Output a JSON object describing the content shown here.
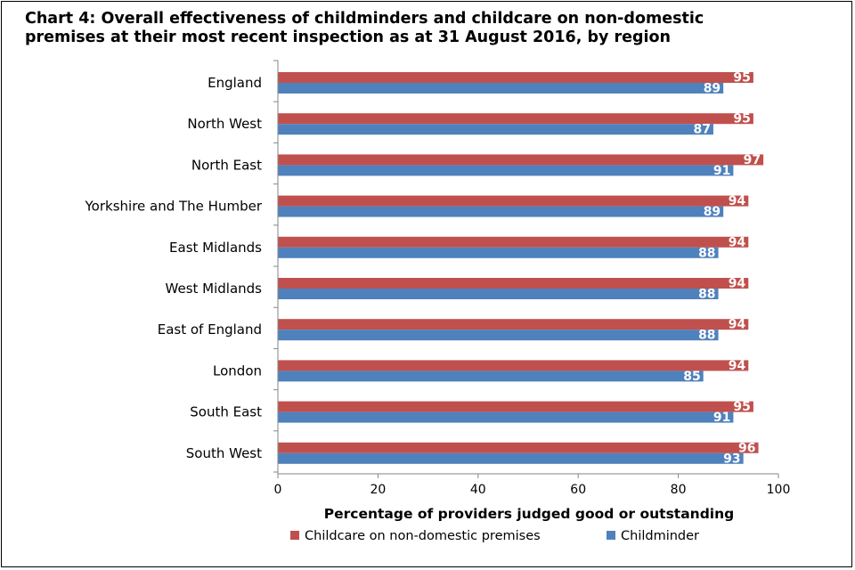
{
  "chart_data": {
    "type": "bar",
    "orientation": "horizontal",
    "title": "Chart 4: Overall effectiveness of childminders and childcare on non-domestic\npremises at their most recent inspection as at 31 August 2016, by region",
    "xlabel": "Percentage of providers judged good or outstanding",
    "ylabel": "",
    "xlim": [
      0,
      100
    ],
    "xticks": [
      0,
      20,
      40,
      60,
      80,
      100
    ],
    "grid": false,
    "legend_position": "bottom",
    "categories": [
      "England",
      "North West",
      "North East",
      "Yorkshire and The Humber",
      "East Midlands",
      "West Midlands",
      "East of England",
      "London",
      "South East",
      "South West"
    ],
    "series": [
      {
        "name": "Childcare on non-domestic premises",
        "color": "#c0504d",
        "values": [
          95,
          95,
          97,
          94,
          94,
          94,
          94,
          94,
          95,
          96
        ]
      },
      {
        "name": "Childminder",
        "color": "#4f81bd",
        "values": [
          89,
          87,
          91,
          89,
          88,
          88,
          88,
          85,
          91,
          93
        ]
      }
    ]
  }
}
